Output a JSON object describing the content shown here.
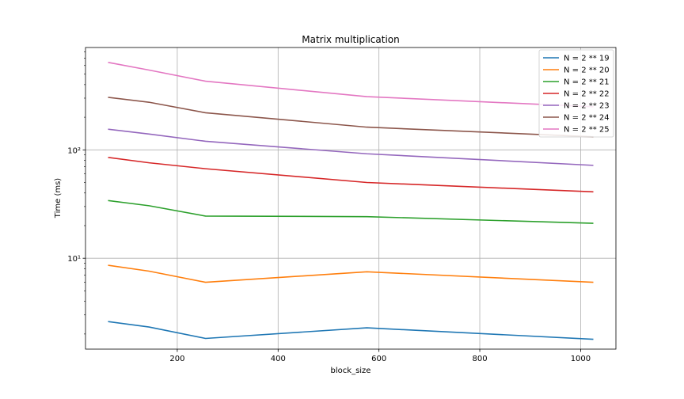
{
  "chart_data": {
    "type": "line",
    "title": "Matrix multiplication",
    "xlabel": "block_size",
    "ylabel": "Time (ms)",
    "yscale": "log",
    "xlim": [
      18,
      1070
    ],
    "ylim": [
      1.45,
      880
    ],
    "grid": true,
    "legend_position": "top-right",
    "x": [
      64,
      144,
      256,
      576,
      1024
    ],
    "x_ticks": [
      200,
      400,
      600,
      800,
      1000
    ],
    "x_tick_labels": [
      "200",
      "400",
      "600",
      "800",
      "1000"
    ],
    "y_ticks": [
      10,
      100
    ],
    "y_tick_labels": [
      "10¹",
      "10²"
    ],
    "series": [
      {
        "name": "N = 2 ** 19",
        "color": "#1f77b4",
        "values": [
          2.6,
          2.32,
          1.82,
          2.28,
          1.79
        ]
      },
      {
        "name": "N = 2 ** 20",
        "color": "#ff7f0e",
        "values": [
          8.6,
          7.6,
          6.0,
          7.5,
          6.0
        ]
      },
      {
        "name": "N = 2 ** 21",
        "color": "#2ca02c",
        "values": [
          34,
          30.5,
          24.5,
          24.2,
          21
        ]
      },
      {
        "name": "N = 2 ** 22",
        "color": "#d62728",
        "values": [
          85,
          76,
          67,
          50,
          41
        ]
      },
      {
        "name": "N = 2 ** 23",
        "color": "#9467bd",
        "values": [
          155,
          140,
          120,
          92,
          72
        ]
      },
      {
        "name": "N = 2 ** 24",
        "color": "#8c564b",
        "values": [
          305,
          275,
          220,
          162,
          132
        ]
      },
      {
        "name": "N = 2 ** 25",
        "color": "#e377c2",
        "values": [
          640,
          545,
          430,
          310,
          250
        ]
      }
    ]
  }
}
